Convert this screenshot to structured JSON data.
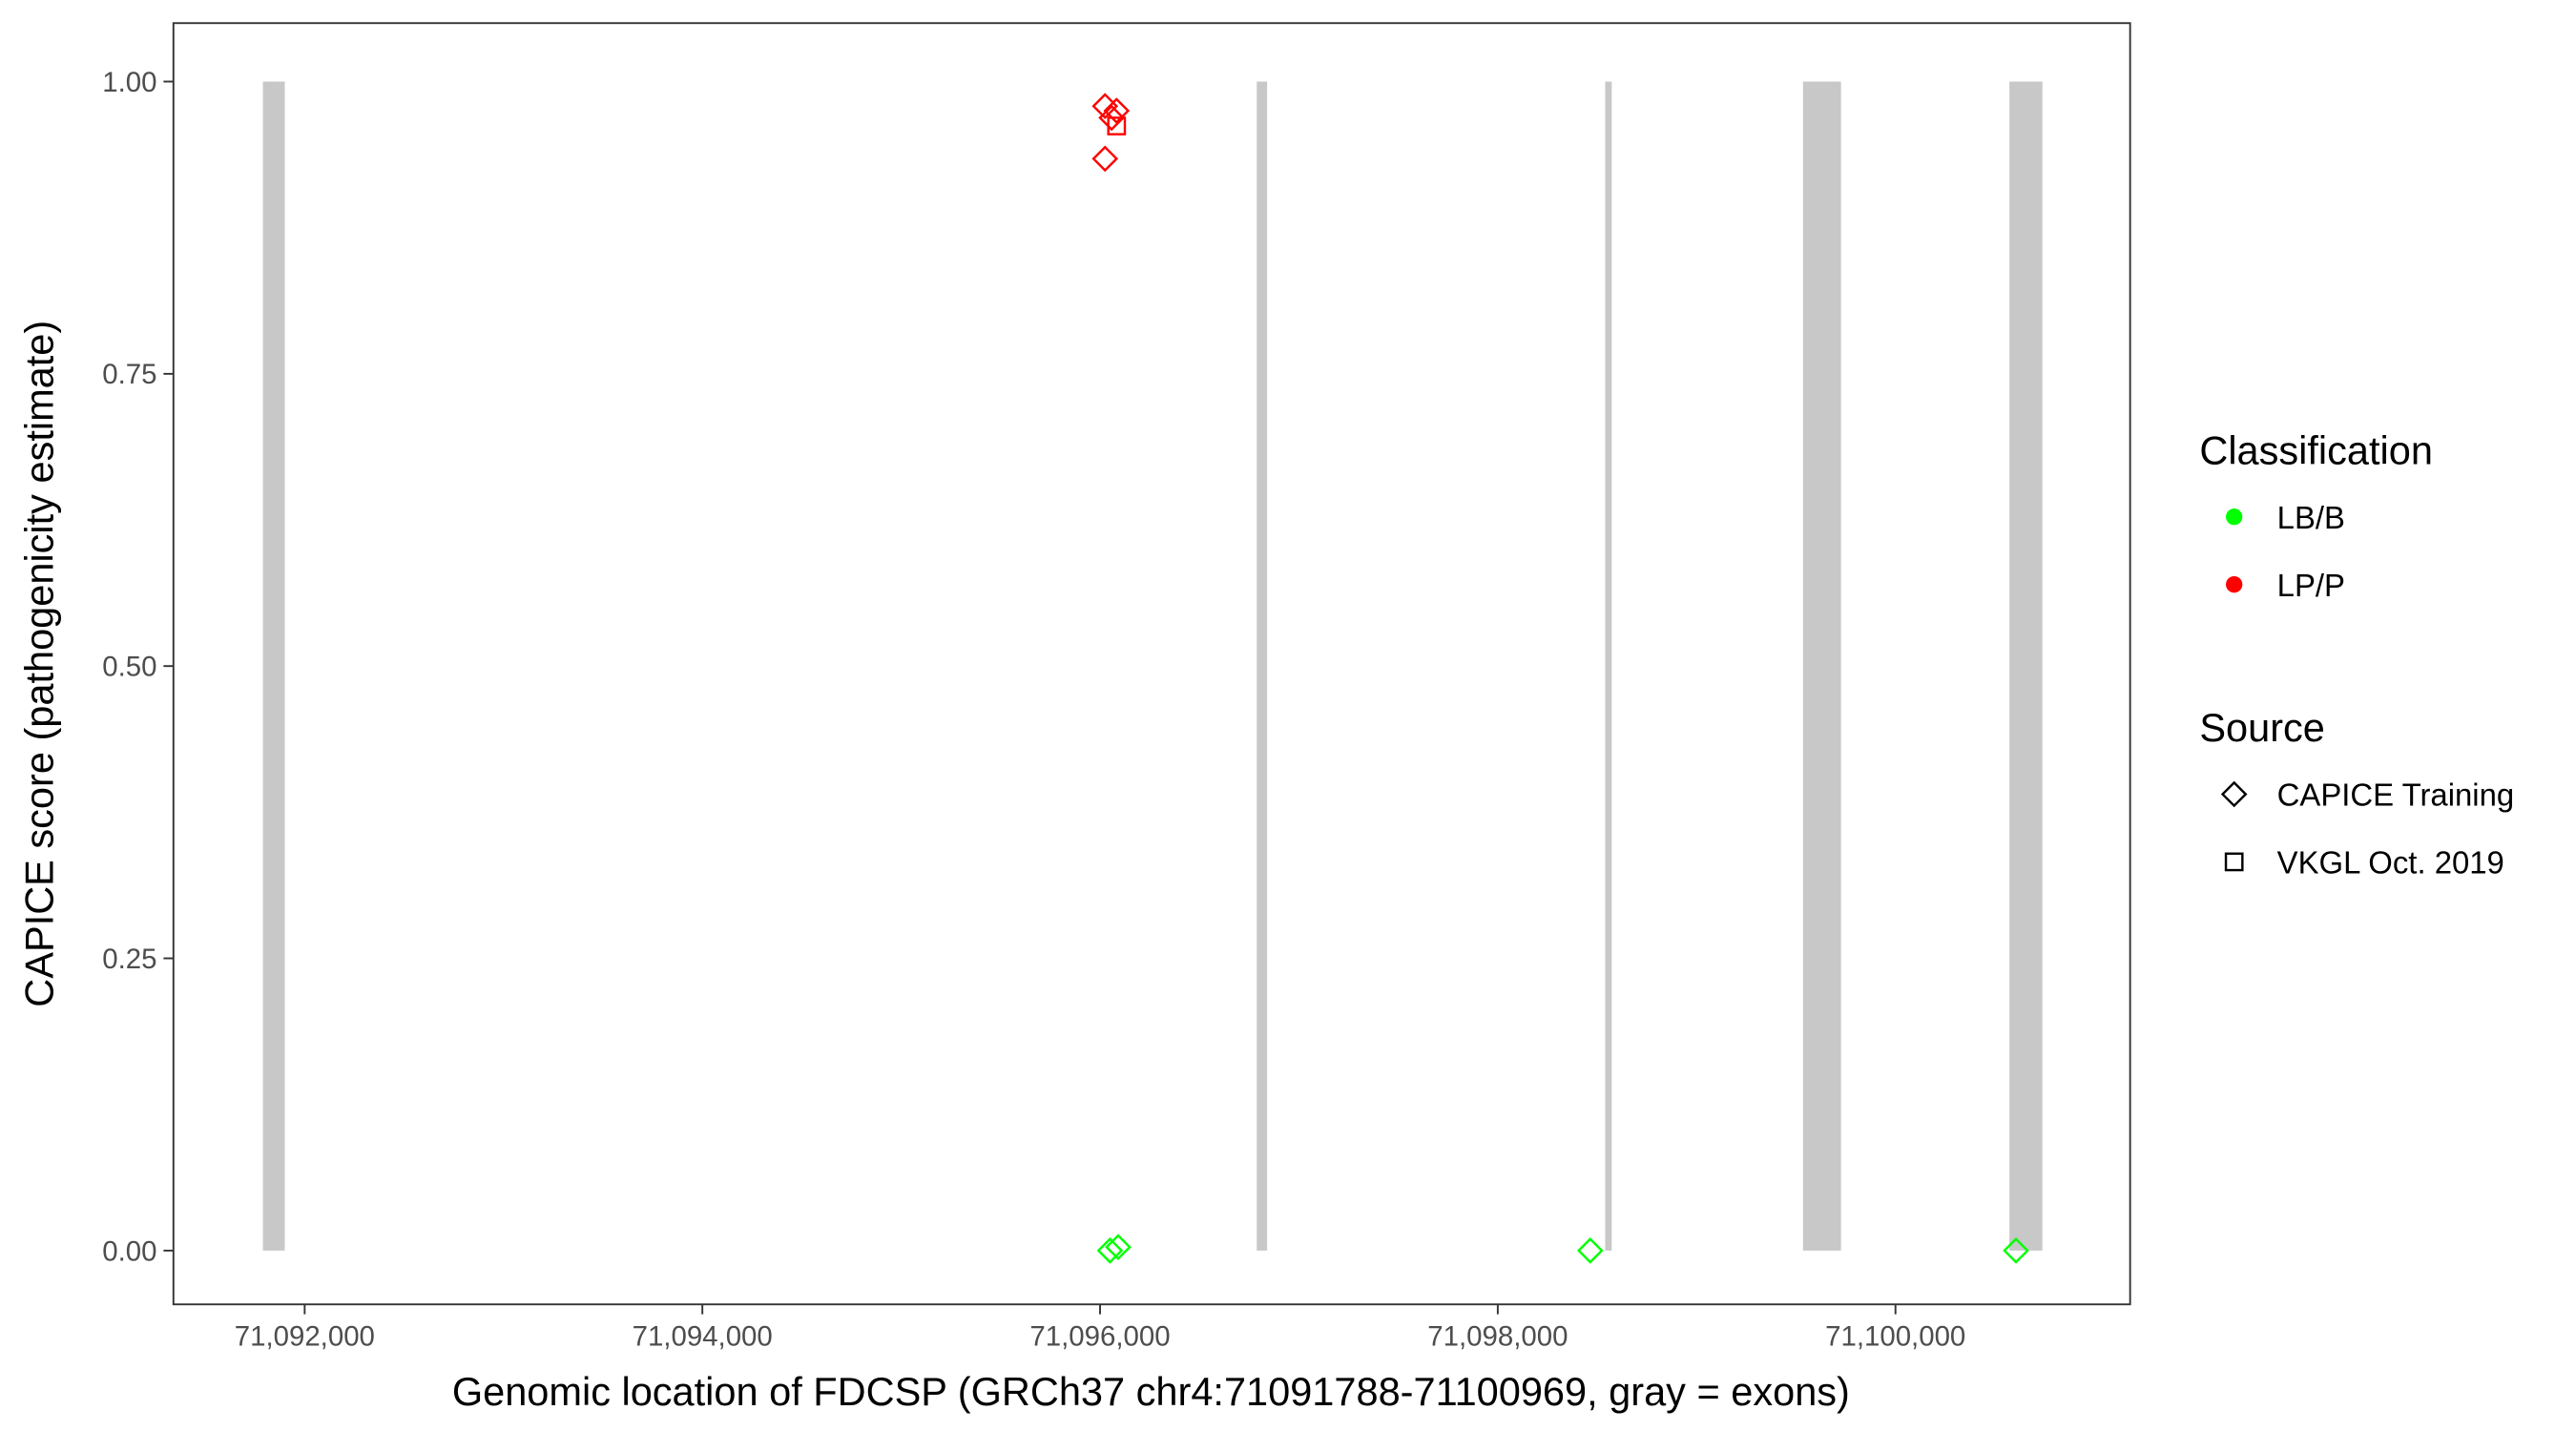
{
  "chart_data": {
    "type": "scatter",
    "title": "",
    "xlabel": "Genomic location of FDCSP (GRCh37 chr4:71091788-71100969, gray = exons)",
    "ylabel": "CAPICE score (pathogenicity estimate)",
    "xlim": [
      71091340,
      71101180
    ],
    "ylim": [
      -0.046,
      1.05
    ],
    "x_ticks": [
      71092000,
      71094000,
      71096000,
      71098000,
      71100000
    ],
    "x_tick_labels": [
      "71,092,000",
      "71,094,000",
      "71,096,000",
      "71,098,000",
      "71,100,000"
    ],
    "y_ticks": [
      0,
      0.25,
      0.5,
      0.75,
      1.0
    ],
    "y_tick_labels": [
      "0.00",
      "0.25",
      "0.50",
      "0.75",
      "1.00"
    ],
    "grid": false,
    "exon_color": "#c8c8c8",
    "exons": [
      {
        "start": 71091790,
        "end": 71091900
      },
      {
        "start": 71096788,
        "end": 71096840
      },
      {
        "start": 71098540,
        "end": 71098573
      },
      {
        "start": 71099535,
        "end": 71099726
      },
      {
        "start": 71100573,
        "end": 71100739
      }
    ],
    "legend_placement": "right",
    "legends": {
      "classification": {
        "title": "Classification",
        "entries": [
          {
            "label": "LB/B",
            "color": "#00ff00"
          },
          {
            "label": "LP/P",
            "color": "#ff0000"
          }
        ]
      },
      "source": {
        "title": "Source",
        "entries": [
          {
            "label": "CAPICE Training",
            "shape": "diamond"
          },
          {
            "label": "VKGL Oct. 2019",
            "shape": "square"
          }
        ]
      }
    },
    "points": [
      {
        "x": 71096025,
        "y": 0.979,
        "classification": "LP/P",
        "source": "CAPICE Training"
      },
      {
        "x": 71096058,
        "y": 0.969,
        "classification": "LP/P",
        "source": "CAPICE Training"
      },
      {
        "x": 71096083,
        "y": 0.975,
        "classification": "LP/P",
        "source": "CAPICE Training"
      },
      {
        "x": 71096025,
        "y": 0.934,
        "classification": "LP/P",
        "source": "CAPICE Training"
      },
      {
        "x": 71096083,
        "y": 0.962,
        "classification": "LP/P",
        "source": "VKGL Oct. 2019"
      },
      {
        "x": 71096050,
        "y": 0.0,
        "classification": "LB/B",
        "source": "CAPICE Training"
      },
      {
        "x": 71096091,
        "y": 0.003,
        "classification": "LB/B",
        "source": "CAPICE Training"
      },
      {
        "x": 71098465,
        "y": 0.0,
        "classification": "LB/B",
        "source": "CAPICE Training"
      },
      {
        "x": 71100606,
        "y": 0.0,
        "classification": "LB/B",
        "source": "CAPICE Training"
      }
    ]
  }
}
